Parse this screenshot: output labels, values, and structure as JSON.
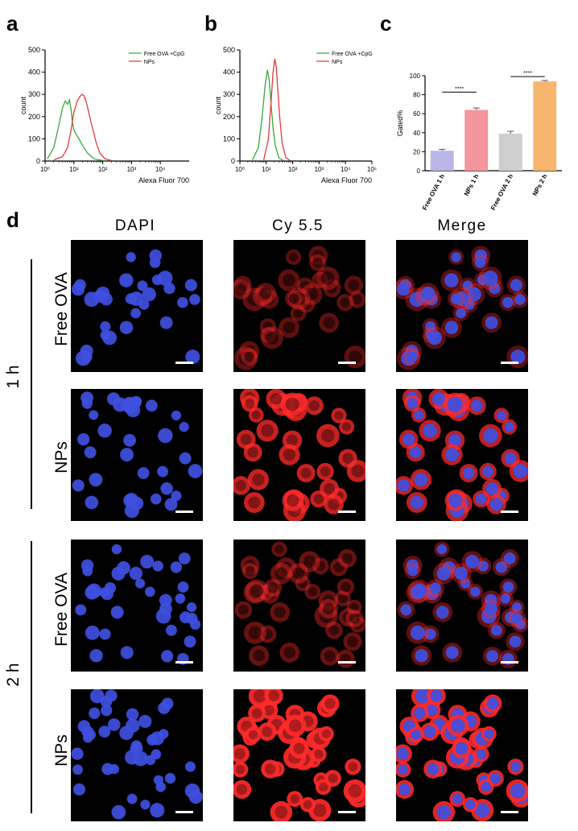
{
  "panels": {
    "a": "a",
    "b": "b",
    "c": "c",
    "d": "d"
  },
  "chart_data": [
    {
      "id": "a",
      "type": "line",
      "xscale": "log",
      "xlim": [
        1,
        100000
      ],
      "ylim": [
        0,
        500
      ],
      "xticks": [
        "10⁰",
        "10¹",
        "10²",
        "10³",
        "10⁴"
      ],
      "yticks": [
        "0",
        "100",
        "200",
        "300",
        "400",
        "500"
      ],
      "xlabel": "Alexa Fluor 700",
      "ylabel": "count",
      "legend_position": "top-right",
      "series": [
        {
          "name": "Free OVA +CpG",
          "color": "#3aa63a",
          "x": [
            1.2,
            2,
            3,
            4,
            5,
            6,
            7,
            8,
            9,
            10,
            12,
            15,
            20,
            30,
            50,
            100
          ],
          "y": [
            10,
            60,
            160,
            240,
            270,
            255,
            275,
            230,
            170,
            140,
            120,
            100,
            70,
            35,
            10,
            2
          ]
        },
        {
          "name": "NPs",
          "color": "#e23a3a",
          "x": [
            2,
            4,
            6,
            8,
            10,
            13,
            16,
            19,
            22,
            26,
            30,
            40,
            60,
            80,
            120,
            200
          ],
          "y": [
            5,
            20,
            60,
            140,
            220,
            270,
            290,
            300,
            295,
            270,
            240,
            170,
            80,
            35,
            10,
            2
          ]
        }
      ]
    },
    {
      "id": "b",
      "type": "line",
      "xscale": "log",
      "xlim": [
        1,
        100000
      ],
      "ylim": [
        0,
        500
      ],
      "xticks": [
        "10⁰",
        "10¹",
        "10²",
        "10³",
        "10⁴",
        "10⁵"
      ],
      "yticks": [
        "0",
        "100",
        "200",
        "300",
        "400",
        "500"
      ],
      "xlabel": "Alexa Fluor 700",
      "ylabel": "count",
      "legend_position": "top-right",
      "series": [
        {
          "name": "Free OVA +CpG",
          "color": "#3aa63a",
          "x": [
            3,
            5,
            7,
            9,
            11,
            13,
            15,
            18,
            22,
            30,
            45
          ],
          "y": [
            5,
            60,
            200,
            340,
            410,
            360,
            260,
            150,
            70,
            15,
            2
          ]
        },
        {
          "name": "NPs",
          "color": "#e23a3a",
          "x": [
            8,
            12,
            15,
            18,
            21,
            24,
            27,
            32,
            40,
            55,
            80
          ],
          "y": [
            5,
            100,
            260,
            400,
            460,
            420,
            330,
            200,
            80,
            15,
            2
          ]
        }
      ]
    },
    {
      "id": "c",
      "type": "bar",
      "categories": [
        "Free OVA 1 h",
        "NPs 1 h",
        "Free OVA 2 h",
        "NPs 2 h"
      ],
      "values": [
        21,
        64,
        39,
        94
      ],
      "errors": [
        1.5,
        2,
        2.5,
        1
      ],
      "colors": [
        "#b9b6e6",
        "#f3959c",
        "#cfcfcf",
        "#f8b56e"
      ],
      "ylim": [
        0,
        100
      ],
      "yticks": [
        "0",
        "20",
        "40",
        "60",
        "80",
        "100"
      ],
      "ylabel": "Gated%",
      "significance": [
        {
          "from": 0,
          "to": 1,
          "label": "****"
        },
        {
          "from": 2,
          "to": 3,
          "label": "****"
        }
      ]
    }
  ],
  "panel_d": {
    "columns": [
      "DAPI",
      "Cy 5.5",
      "Merge"
    ],
    "time_labels": [
      "1 h",
      "2 h"
    ],
    "row_labels": [
      "Free OVA",
      "NPs",
      "Free OVA",
      "NPs"
    ],
    "channel_colors": {
      "dapi": "#3f4fe0",
      "cy55": "#ff2a2a"
    },
    "red_intensity": [
      0.25,
      0.8,
      0.3,
      1.0
    ],
    "cell_density": [
      0.5,
      0.6,
      0.7,
      0.9
    ]
  }
}
